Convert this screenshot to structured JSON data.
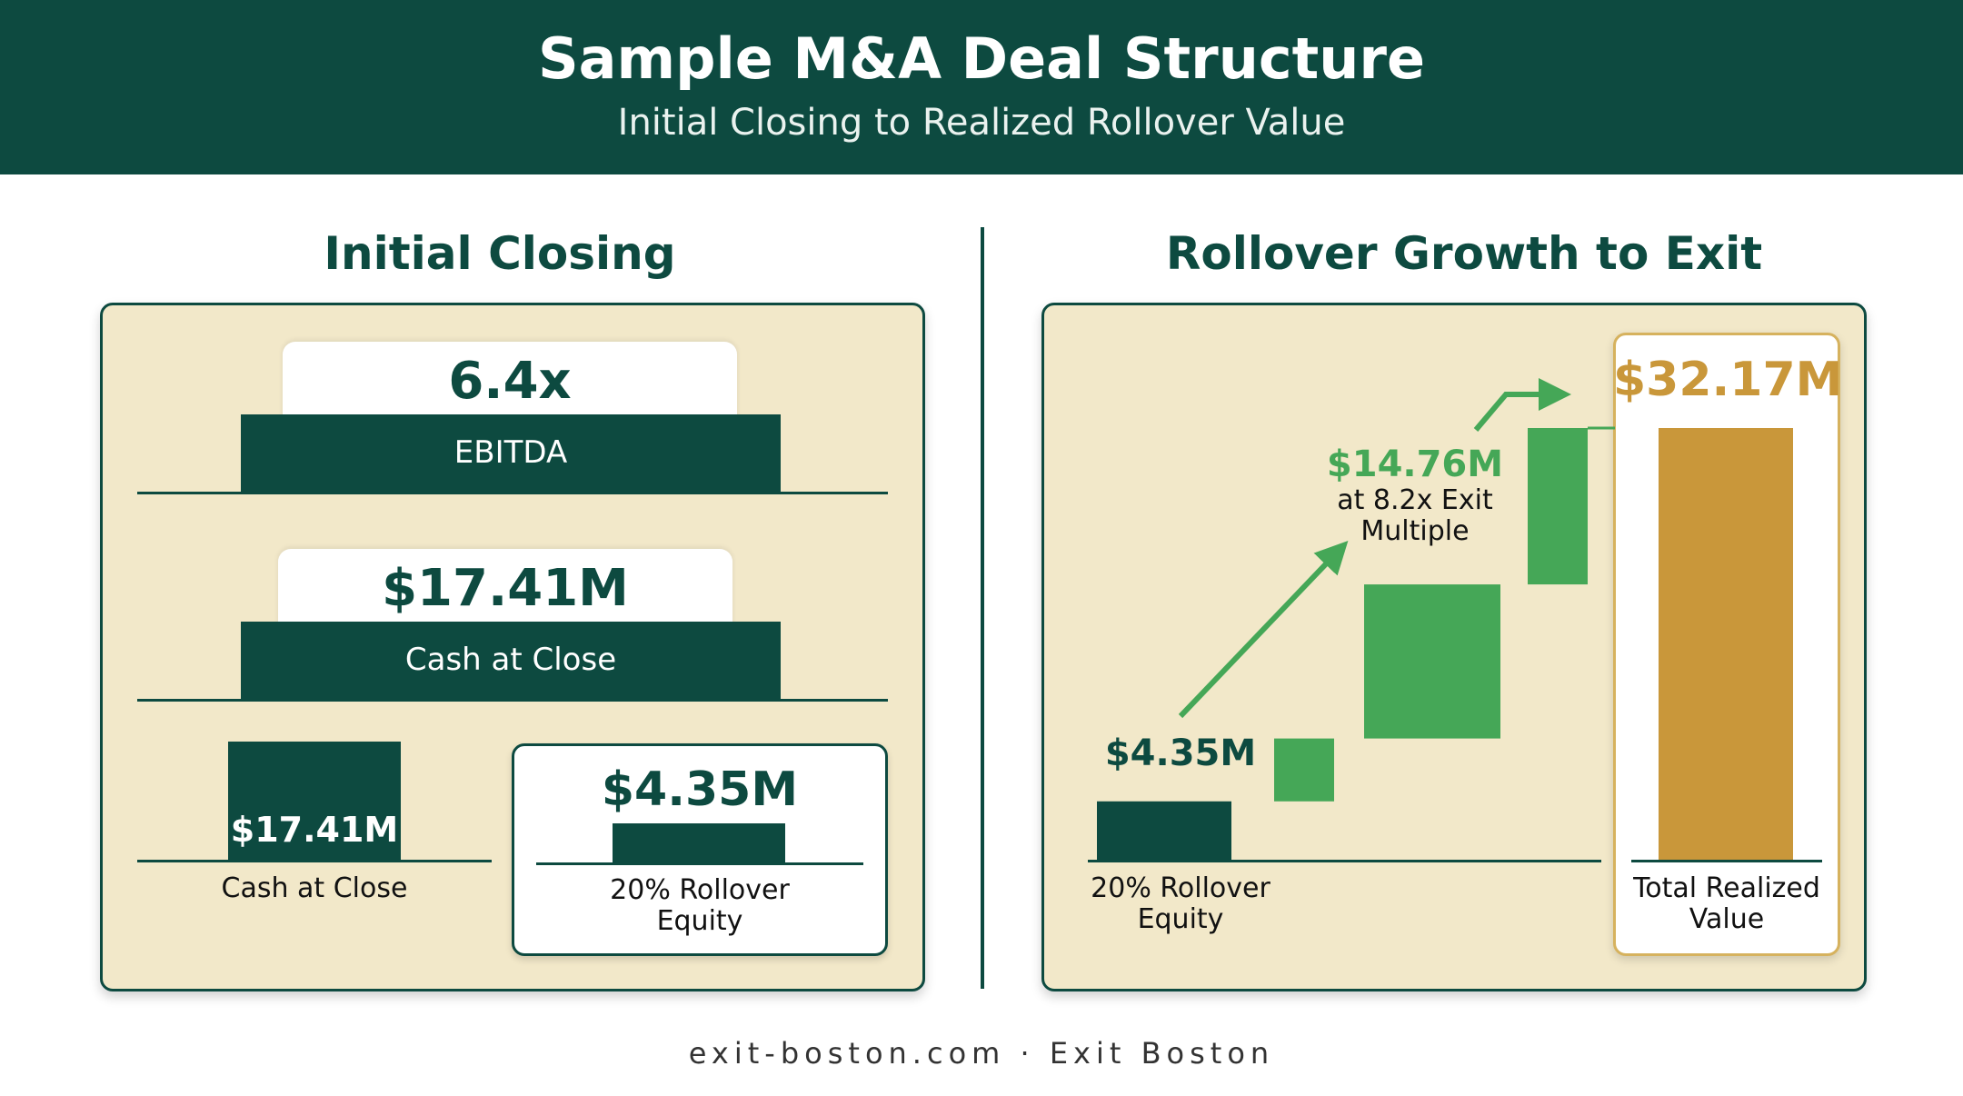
{
  "header": {
    "title": "Sample M&A Deal Structure",
    "subtitle": "Initial Closing to Realized Rollover Value"
  },
  "left": {
    "section_title": "Initial Closing",
    "ebitda_multiple": "6.4x",
    "ebitda_label": "EBITDA",
    "cash_value": "$17.41M",
    "cash_label": "Cash at Close",
    "small_cash_value": "$17.41M",
    "small_cash_label": "Cash at Close",
    "rollover_value": "$4.35M",
    "rollover_label_line1": "20% Rollover",
    "rollover_label_line2": "Equity"
  },
  "right": {
    "section_title": "Rollover Growth to Exit",
    "start_value": "$4.35M",
    "start_label_line1": "20% Rollover",
    "start_label_line2": "Equity",
    "mid_value": "$14.76M",
    "mid_note_line1": "at 8.2x Exit",
    "mid_note_line2": "Multiple",
    "total_value": "$32.17M",
    "total_label_line1": "Total Realized",
    "total_label_line2": "Value"
  },
  "chart_data": {
    "type": "bar",
    "title": "Rollover Growth to Exit",
    "categories": [
      "20% Rollover Equity",
      "Total Realized Value"
    ],
    "values": [
      4.35,
      32.17
    ],
    "intermediate_value": 14.76,
    "exit_multiple": "8.2x",
    "ebitda_multiple": "6.4x",
    "cash_at_close": 17.41,
    "units": "$M"
  },
  "colors": {
    "dark_green": "#0d4a40",
    "green": "#45a757",
    "gold": "#c9973a",
    "panel": "#f2e8c9"
  },
  "footer": {
    "text": "exit-boston.com · Exit Boston"
  }
}
